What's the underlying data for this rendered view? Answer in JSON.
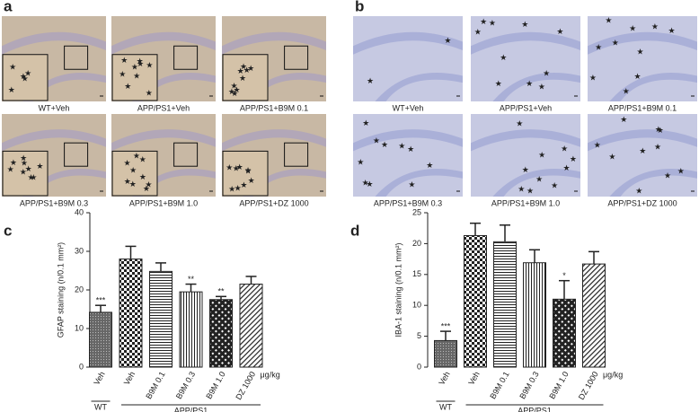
{
  "panels": [
    {
      "label": "a",
      "captions": [
        "WT+Veh",
        "APP/PS1+Veh",
        "APP/PS1+B9M 0.1",
        "APP/PS1+B9M 0.3",
        "APP/PS1+B9M 1.0",
        "APP/PS1+DZ 1000"
      ]
    },
    {
      "label": "b",
      "captions": [
        "WT+Veh",
        "APP/PS1+Veh",
        "APP/PS1+B9M 0.1",
        "APP/PS1+B9M 0.3",
        "APP/PS1+B9M 1.0",
        "APP/PS1+DZ 1000"
      ]
    }
  ],
  "chart_data": [
    {
      "type": "bar",
      "label": "c",
      "ylabel": "GFAP staining (n/0.1 mm²)",
      "categories": [
        "Veh",
        "Veh",
        "B9M 0.1",
        "B9M 0.3",
        "B9M 1.0",
        "DZ 1000"
      ],
      "values": [
        14.2,
        28,
        24.8,
        19.5,
        17.5,
        21.5
      ],
      "errors": [
        1.8,
        3.3,
        2.2,
        2,
        0.8,
        2
      ],
      "value_annotations": [
        "***",
        null,
        null,
        "**",
        "**",
        null
      ],
      "patterns": [
        "dots",
        "checker",
        "hlines",
        "vlines",
        "darkchecker",
        "diagonal"
      ],
      "unit_label": "μg/kg",
      "groups": [
        {
          "label": "WT",
          "from": 0,
          "to": 0
        },
        {
          "label": "APP/PS1",
          "from": 1,
          "to": 5
        }
      ],
      "ylim": [
        0,
        40
      ],
      "yticks": [
        0,
        10,
        20,
        30,
        40
      ]
    },
    {
      "type": "bar",
      "label": "d",
      "ylabel": "IBA-1 staining (n/0.1 mm²)",
      "categories": [
        "Veh",
        "Veh",
        "B9M 0.1",
        "B9M 0.3",
        "B9M 1.0",
        "DZ 1000"
      ],
      "values": [
        4.3,
        21.3,
        20.3,
        16.9,
        11,
        16.7
      ],
      "errors": [
        1.5,
        2,
        2.7,
        2.1,
        3,
        2
      ],
      "value_annotations": [
        "***",
        null,
        null,
        null,
        "*",
        null
      ],
      "patterns": [
        "dots",
        "checker",
        "hlines",
        "vlines",
        "darkchecker",
        "diagonal"
      ],
      "unit_label": "μg/kg",
      "groups": [
        {
          "label": "WT",
          "from": 0,
          "to": 0
        },
        {
          "label": "APP/PS1",
          "from": 1,
          "to": 5
        }
      ],
      "ylim": [
        0,
        25
      ],
      "yticks": [
        0,
        5,
        10,
        15,
        20,
        25
      ]
    }
  ]
}
